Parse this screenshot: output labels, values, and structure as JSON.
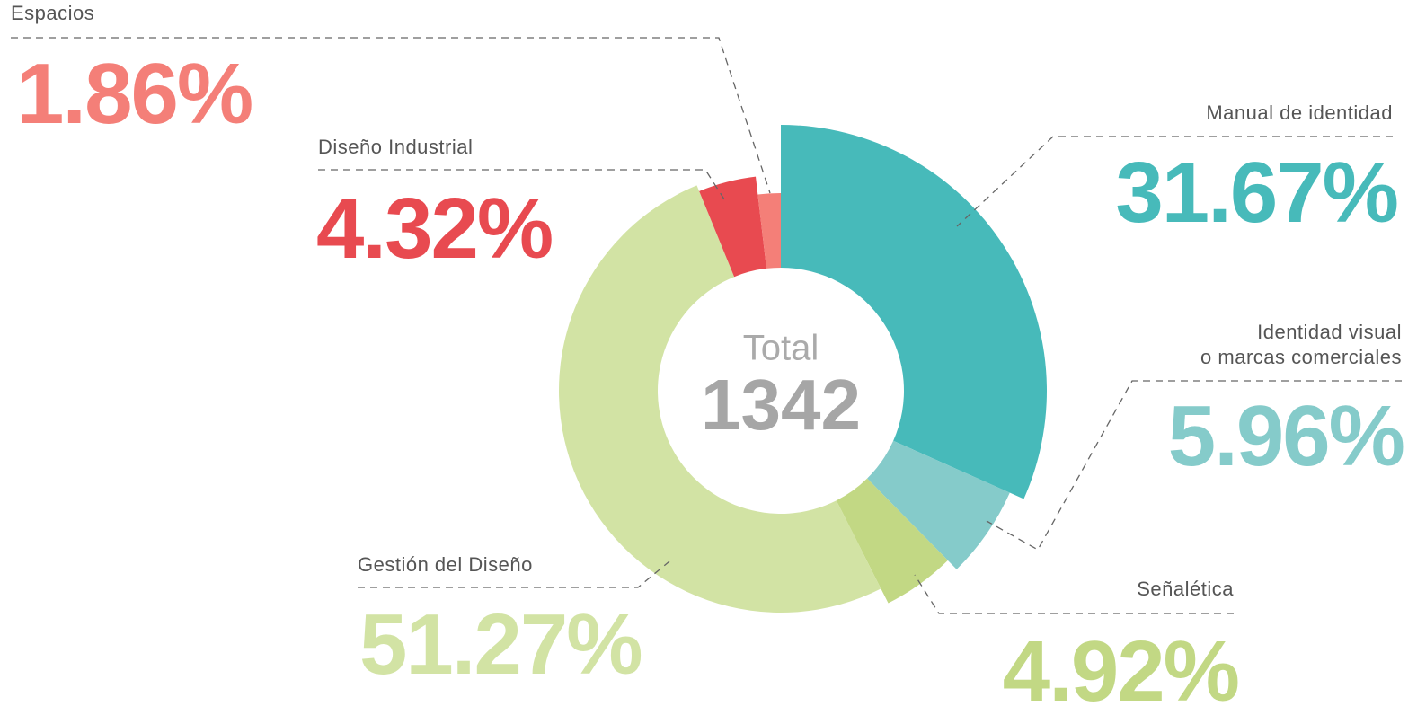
{
  "chart_data": {
    "type": "donut",
    "categories": [
      "Manual de identidad",
      "Identidad visual o marcas comerciales",
      "Señalética",
      "Gestión del Diseño",
      "Diseño Industrial",
      "Espacios"
    ],
    "values": [
      31.67,
      5.96,
      4.92,
      51.27,
      4.32,
      1.86
    ],
    "value_labels": [
      "31.67%",
      "5.96%",
      "4.92%",
      "51.27%",
      "4.32%",
      "1.86%"
    ],
    "colors": [
      "#47baba",
      "#85cbca",
      "#c2d884",
      "#d2e3a4",
      "#e84a50",
      "#f47f78"
    ],
    "center_label": "Total",
    "total": 1342
  }
}
